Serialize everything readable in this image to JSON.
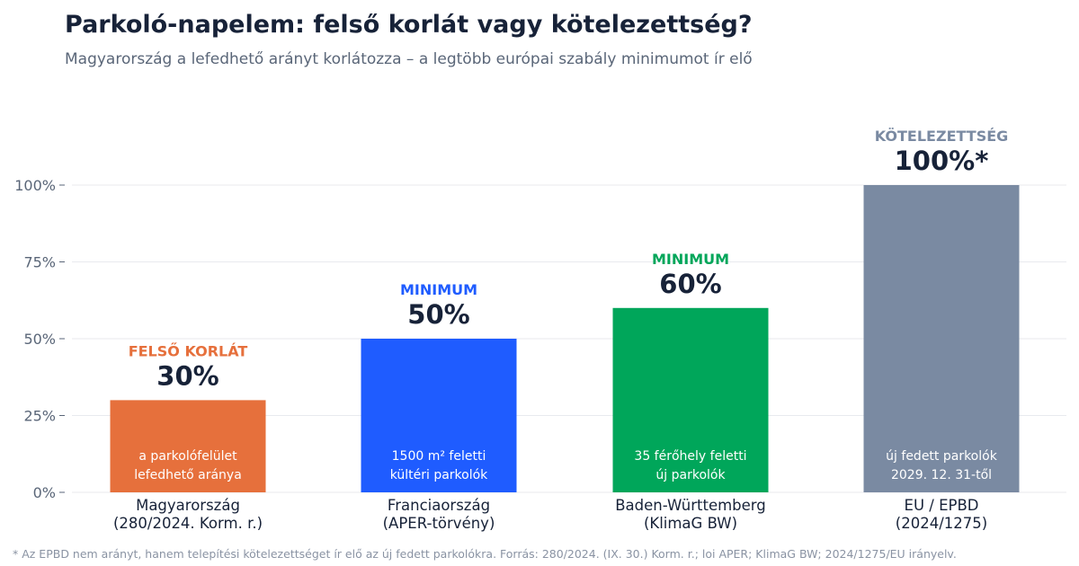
{
  "title": "Parkoló-napelem: felső korlát vagy kötelezettség?",
  "subtitle": "Magyarország a lefedhető arányt korlátozza – a legtöbb európai szabály minimumot ír elő",
  "footnote": "* Az EPBD nem arányt, hanem telepítési kötelezettséget ír elő az új fedett parkolókra.  Forrás: 280/2024. (IX. 30.) Korm. r.; loi APER; KlimaG BW; 2024/1275/EU irányelv.",
  "chart_data": {
    "type": "bar",
    "ylim": [
      0,
      100
    ],
    "yticks": [
      0,
      25,
      50,
      75,
      100
    ],
    "ytick_labels": [
      "0%",
      "25%",
      "50%",
      "75%",
      "100%"
    ],
    "grid": true,
    "bars": [
      {
        "category_line1": "Magyarország",
        "category_line2": "(280/2024. Korm. r.)",
        "value": 30,
        "value_label": "30%",
        "tag": "FELSŐ KORLÁT",
        "color": "#e6703c",
        "tag_color": "#e6703c",
        "inner_line1": "a parkolófelület",
        "inner_line2": "lefedhető aránya"
      },
      {
        "category_line1": "Franciaország",
        "category_line2": "(APER-törvény)",
        "value": 50,
        "value_label": "50%",
        "tag": "MINIMUM",
        "color": "#1f5cff",
        "tag_color": "#1f5cff",
        "inner_line1": "1500 m² feletti",
        "inner_line2": "kültéri parkolók"
      },
      {
        "category_line1": "Baden-Württemberg",
        "category_line2": "(KlimaG BW)",
        "value": 60,
        "value_label": "60%",
        "tag": "MINIMUM",
        "color": "#00a65a",
        "tag_color": "#00a65a",
        "inner_line1": "35 férőhely feletti",
        "inner_line2": "új parkolók"
      },
      {
        "category_line1": "EU / EPBD",
        "category_line2": "(2024/1275)",
        "value": 100,
        "value_label": "100%*",
        "tag": "KÖTELEZETTSÉG",
        "color": "#7a8aa2",
        "tag_color": "#7a8aa2",
        "inner_line1": "új fedett parkolók",
        "inner_line2": "2029. 12. 31-től"
      }
    ]
  }
}
